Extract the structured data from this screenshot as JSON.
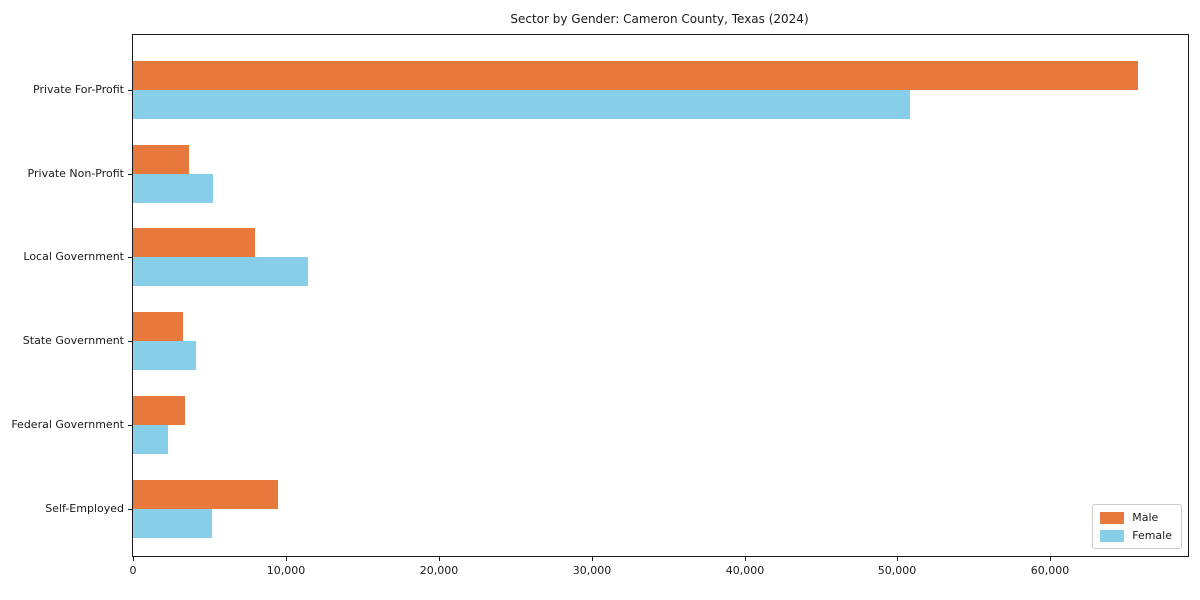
{
  "chart_data": {
    "type": "bar",
    "orientation": "horizontal",
    "title": "Sector by Gender: Cameron County, Texas (2024)",
    "categories": [
      "Private For-Profit",
      "Private Non-Profit",
      "Local Government",
      "State Government",
      "Federal Government",
      "Self-Employed"
    ],
    "series": [
      {
        "name": "Male",
        "color": "#E8793C",
        "values": [
          65700,
          3690,
          8010,
          3290,
          3400,
          9480
        ]
      },
      {
        "name": "Female",
        "color": "#87CEE9",
        "values": [
          50800,
          5260,
          11460,
          4110,
          2290,
          5170
        ]
      }
    ],
    "xlabel": "",
    "ylabel": "",
    "xlim": [
      0,
      69000
    ],
    "x_ticks": [
      0,
      10000,
      20000,
      30000,
      40000,
      50000,
      60000
    ],
    "x_tick_labels": [
      "0",
      "10,000",
      "20,000",
      "30,000",
      "40,000",
      "50,000",
      "60,000"
    ],
    "grid": false,
    "legend_position": "lower right",
    "background_color": "#ffffff",
    "spine_color": "#1a1a1a"
  }
}
